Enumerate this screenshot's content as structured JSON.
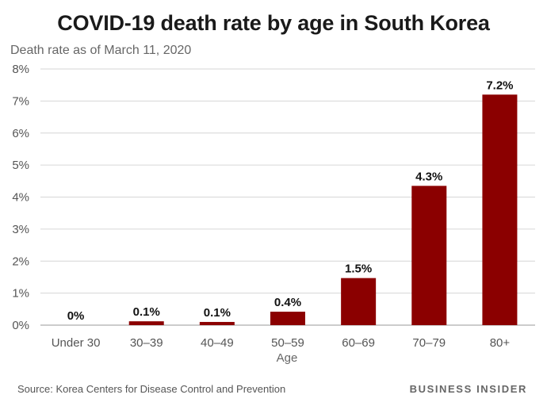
{
  "chart_data": {
    "type": "bar",
    "title": "COVID-19 death rate by age in South Korea",
    "subtitle": "Death rate as of March 11, 2020",
    "xlabel": "Age",
    "ylabel": "",
    "categories": [
      "Under 30",
      "30–39",
      "40–49",
      "50–59",
      "60–69",
      "70–79",
      "80+"
    ],
    "values": [
      0,
      0.1,
      0.1,
      0.4,
      1.5,
      4.3,
      7.2
    ],
    "value_labels": [
      "0%",
      "0.1%",
      "0.1%",
      "0.4%",
      "1.5%",
      "4.3%",
      "7.2%"
    ],
    "bar_heights": [
      0,
      0.12,
      0.1,
      0.42,
      1.47,
      4.35,
      7.2
    ],
    "ylim": [
      0,
      8
    ],
    "yticks": [
      0,
      1,
      2,
      3,
      4,
      5,
      6,
      7,
      8
    ],
    "ytick_labels": [
      "0%",
      "1%",
      "2%",
      "3%",
      "4%",
      "5%",
      "6%",
      "7%",
      "8%"
    ],
    "grid": true,
    "bar_color": "#8b0000"
  },
  "footer": {
    "source_label": "Source:",
    "source_text": "Korea Centers for Disease Control and Prevention",
    "brand": "BUSINESS INSIDER"
  }
}
